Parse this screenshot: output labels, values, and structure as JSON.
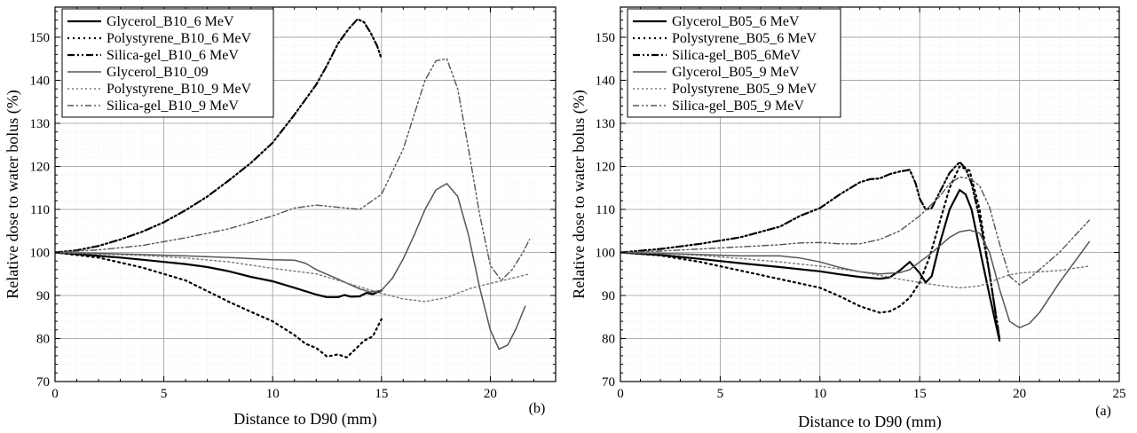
{
  "chart_data": [
    {
      "type": "line",
      "panel_label": "(b)",
      "xlabel": "Distance to D90 (mm)",
      "ylabel": "Relative dose to water bolus (%)",
      "xlim": [
        0,
        23
      ],
      "ylim": [
        70,
        157
      ],
      "xticks": [
        0,
        5,
        10,
        15,
        20
      ],
      "yticks": [
        70,
        80,
        90,
        100,
        110,
        120,
        130,
        140,
        150
      ],
      "grid": true,
      "legend_position": "top-left",
      "series": [
        {
          "name": "Glycerol_B10_6 MeV",
          "color": "#000000",
          "dash": "solid",
          "width": 2.2,
          "x": [
            0,
            1,
            2,
            3,
            4,
            5,
            6,
            7,
            8,
            9,
            10,
            11,
            12,
            12.5,
            13,
            13.3,
            13.6,
            14,
            14.3,
            14.6,
            15
          ],
          "y": [
            100,
            99.6,
            99.2,
            98.8,
            98.3,
            97.8,
            97.3,
            96.6,
            95.6,
            94.3,
            93.3,
            91.8,
            90.2,
            89.6,
            89.6,
            90.1,
            89.7,
            89.8,
            90.6,
            90.3,
            91.2
          ]
        },
        {
          "name": "Polystyrene_B10_6 MeV",
          "color": "#000000",
          "dash": "2,4",
          "width": 2.2,
          "x": [
            0,
            2,
            4,
            6,
            8,
            9,
            10,
            11,
            11.5,
            12,
            12.5,
            13,
            13.4,
            13.8,
            14.2,
            14.6,
            15
          ],
          "y": [
            100,
            98.8,
            96.5,
            93.5,
            88.5,
            86.2,
            84,
            80.8,
            78.8,
            77.8,
            75.8,
            76.3,
            75.6,
            77.5,
            79.5,
            80.5,
            84.5
          ]
        },
        {
          "name": "Silica-gel_B10_6 MeV",
          "color": "#000000",
          "dash": "8,3,2,3,2,3",
          "width": 2.2,
          "x": [
            0,
            1,
            2,
            3,
            4,
            5,
            6,
            7,
            8,
            9,
            10,
            11,
            12,
            12.5,
            13,
            13.5,
            13.9,
            14.2,
            14.5,
            14.8,
            15
          ],
          "y": [
            100,
            100.5,
            101.5,
            103,
            104.8,
            107,
            109.8,
            113,
            116.8,
            120.8,
            125.5,
            132,
            139,
            143.5,
            148.5,
            152,
            154.2,
            153.5,
            151,
            148,
            145
          ]
        },
        {
          "name": "Glycerol_B10_09",
          "color": "#555555",
          "dash": "solid",
          "width": 1.5,
          "x": [
            0,
            2,
            4,
            6,
            8,
            10,
            11,
            11.5,
            12,
            13,
            14,
            14.5,
            15,
            15.5,
            16,
            16.5,
            17,
            17.5,
            18,
            18.5,
            19,
            19.5,
            20,
            20.4,
            20.8,
            21.2,
            21.6
          ],
          "y": [
            100,
            99.8,
            99.5,
            99.2,
            98.8,
            98.3,
            98.2,
            97.5,
            96,
            93.8,
            91.5,
            90.8,
            91.2,
            94,
            98.5,
            104,
            110,
            114.5,
            116,
            113,
            104,
            92,
            82,
            77.5,
            78.5,
            82.5,
            87.5
          ]
        },
        {
          "name": "Polystyrene_B10_9 MeV",
          "color": "#777777",
          "dash": "2,3",
          "width": 1.4,
          "x": [
            0,
            2,
            4,
            6,
            8,
            10,
            12,
            13,
            14,
            15,
            16,
            17,
            18,
            19,
            20,
            21,
            21.8
          ],
          "y": [
            100,
            99.6,
            99.3,
            98.7,
            97.8,
            96.3,
            95,
            93.5,
            92,
            90.5,
            89.2,
            88.6,
            89.5,
            91.5,
            92.8,
            94,
            95
          ]
        },
        {
          "name": "Silica-gel_B10_9 MeV",
          "color": "#555555",
          "dash": "7,3,2,3,2,3",
          "width": 1.4,
          "x": [
            0,
            2,
            4,
            6,
            8,
            10,
            11,
            12,
            13,
            14,
            15,
            16,
            16.5,
            17,
            17.5,
            18,
            18.5,
            19,
            19.5,
            20,
            20.5,
            21,
            21.5,
            21.8
          ],
          "y": [
            100,
            100.6,
            101.6,
            103.4,
            105.5,
            108.5,
            110.3,
            111,
            110.5,
            110,
            113.5,
            124,
            132,
            140,
            144.5,
            145,
            138,
            124,
            109,
            97,
            93.5,
            96,
            100,
            103
          ]
        }
      ]
    },
    {
      "type": "line",
      "panel_label": "(a)",
      "xlabel": "Distance to D90 (mm)",
      "ylabel": "Relative dose to water bolus (%)",
      "xlim": [
        0,
        25
      ],
      "ylim": [
        70,
        157
      ],
      "xticks": [
        0,
        5,
        10,
        15,
        20,
        25
      ],
      "yticks": [
        70,
        80,
        90,
        100,
        110,
        120,
        130,
        140,
        150
      ],
      "grid": true,
      "legend_position": "top-left",
      "series": [
        {
          "name": "Glycerol_B05_6 MeV",
          "color": "#000000",
          "dash": "solid",
          "width": 2.2,
          "x": [
            0,
            2,
            4,
            6,
            8,
            10,
            11,
            12,
            13,
            13.5,
            14,
            14.5,
            15,
            15.3,
            15.6,
            16,
            16.5,
            17,
            17.3,
            17.6,
            18,
            18.5,
            19
          ],
          "y": [
            100,
            99.4,
            98.5,
            97.5,
            96.6,
            95.6,
            94.9,
            94.3,
            93.9,
            94.2,
            95.8,
            97.8,
            95.2,
            93,
            94.5,
            102,
            110,
            114.5,
            113.5,
            110,
            101,
            90,
            79.5
          ]
        },
        {
          "name": "Polystyrene_B05_6 MeV",
          "color": "#000000",
          "dash": "2,4",
          "width": 2.2,
          "x": [
            0,
            2,
            4,
            6,
            8,
            10,
            11,
            12,
            13,
            13.5,
            14,
            14.5,
            15,
            15.5,
            16,
            16.5,
            17,
            17.5,
            18,
            18.5,
            19
          ],
          "y": [
            100,
            99.3,
            97.8,
            95.8,
            93.8,
            91.8,
            89.8,
            87.5,
            86,
            86.3,
            87.5,
            89.5,
            93,
            99,
            107,
            115,
            120,
            119,
            110,
            95,
            80
          ]
        },
        {
          "name": "Silica-gel_B05_6MeV",
          "color": "#000000",
          "dash": "8,3,2,3,2,3",
          "width": 2.2,
          "x": [
            0,
            2,
            4,
            6,
            8,
            9,
            10,
            11,
            12,
            12.5,
            13,
            13.5,
            14,
            14.5,
            14.8,
            15,
            15.3,
            15.6,
            16,
            16.5,
            17,
            17.3,
            17.6,
            18,
            18.5,
            19
          ],
          "y": [
            100,
            100.8,
            102,
            103.5,
            106,
            108.5,
            110.3,
            113.5,
            116.3,
            117,
            117.2,
            118.2,
            118.8,
            119.2,
            116,
            112.5,
            110,
            110.3,
            114,
            118.5,
            121,
            119.5,
            116,
            108,
            95,
            80
          ]
        },
        {
          "name": "Glycerol_B05_9 MeV",
          "color": "#555555",
          "dash": "solid",
          "width": 1.5,
          "x": [
            0,
            2,
            4,
            6,
            8,
            9,
            10,
            11,
            12,
            13,
            14,
            14.5,
            15,
            15.5,
            16,
            16.5,
            17,
            17.5,
            18,
            18.5,
            19,
            19.5,
            20,
            20.5,
            21,
            22,
            23.5
          ],
          "y": [
            100,
            99.8,
            99.5,
            99.2,
            99.2,
            98.7,
            97.8,
            96.5,
            95.5,
            95,
            95.3,
            96,
            97.8,
            99.5,
            101.5,
            103.5,
            104.8,
            105.2,
            104.5,
            100,
            91.5,
            84,
            82.5,
            83.5,
            86,
            93,
            102.5
          ]
        },
        {
          "name": "Polystyrene_B05_9 MeV",
          "color": "#777777",
          "dash": "2,3",
          "width": 1.4,
          "x": [
            0,
            2,
            4,
            6,
            8,
            10,
            12,
            14,
            15,
            16,
            17,
            18,
            18.5,
            19,
            19.5,
            20,
            20.5,
            21,
            22,
            23,
            23.5
          ],
          "y": [
            100,
            99.7,
            99.3,
            98.6,
            97.8,
            96.8,
            95.5,
            93.8,
            93,
            92.3,
            91.8,
            92.2,
            93,
            94,
            94.8,
            95.2,
            95.4,
            95.5,
            95.8,
            96.5,
            96.8
          ]
        },
        {
          "name": "Silica-gel_B05_9 MeV",
          "color": "#555555",
          "dash": "7,3,2,3,2,3",
          "width": 1.4,
          "x": [
            0,
            2,
            4,
            6,
            8,
            9,
            10,
            11,
            12,
            13,
            14,
            15,
            16,
            16.5,
            17,
            17.5,
            18,
            18.5,
            19,
            19.5,
            20,
            20.5,
            21,
            22,
            23,
            23.5
          ],
          "y": [
            100,
            100.3,
            100.8,
            101.3,
            101.8,
            102.2,
            102.3,
            102,
            102,
            103,
            105,
            108.5,
            113,
            116,
            117.5,
            117.2,
            115.5,
            110.5,
            102,
            94.5,
            92.5,
            94,
            96,
            100,
            105,
            107.5
          ]
        }
      ]
    }
  ]
}
